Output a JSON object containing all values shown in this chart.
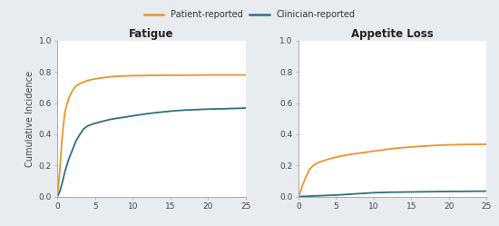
{
  "title_left": "Fatigue",
  "title_right": "Appetite Loss",
  "ylabel": "Cumulative Incidence",
  "xlim": [
    0,
    25
  ],
  "ylim": [
    0.0,
    1.0
  ],
  "yticks": [
    0.0,
    0.2,
    0.4,
    0.6,
    0.8,
    1.0
  ],
  "xticks": [
    0,
    5,
    10,
    15,
    20,
    25
  ],
  "color_patient": "#E8952A",
  "color_clinician": "#2E7080",
  "legend_labels": [
    "Patient-reported",
    "Clinician-reported"
  ],
  "outer_bg": "#E8ECF0",
  "plot_bg": "#FFFFFF",
  "fatigue_patient_x": [
    0,
    0.2,
    0.4,
    0.6,
    0.8,
    1.0,
    1.2,
    1.5,
    1.8,
    2.0,
    2.5,
    3.0,
    3.5,
    4.0,
    5.0,
    6.0,
    7.0,
    8.0,
    9.0,
    10.0,
    11.0,
    12.0,
    13.0,
    14.0,
    15.0,
    16.0,
    17.0,
    18.0,
    19.0,
    20.0,
    21.0,
    22.0,
    23.0,
    24.0,
    25.0
  ],
  "fatigue_patient_y": [
    0.0,
    0.1,
    0.22,
    0.36,
    0.46,
    0.54,
    0.58,
    0.63,
    0.66,
    0.68,
    0.71,
    0.725,
    0.735,
    0.745,
    0.755,
    0.762,
    0.768,
    0.772,
    0.774,
    0.7755,
    0.776,
    0.777,
    0.7775,
    0.778,
    0.778,
    0.7785,
    0.779,
    0.779,
    0.7795,
    0.78,
    0.78,
    0.78,
    0.78,
    0.78,
    0.78
  ],
  "fatigue_clinician_x": [
    0,
    0.3,
    0.6,
    1.0,
    1.5,
    2.0,
    2.5,
    3.0,
    3.5,
    4.0,
    4.5,
    5.0,
    6.0,
    7.0,
    8.0,
    9.0,
    10.0,
    11.0,
    12.0,
    13.0,
    14.0,
    15.0,
    16.0,
    17.0,
    18.0,
    19.0,
    20.0,
    21.0,
    22.0,
    23.0,
    24.0,
    25.0
  ],
  "fatigue_clinician_y": [
    0.0,
    0.03,
    0.08,
    0.16,
    0.24,
    0.3,
    0.36,
    0.4,
    0.435,
    0.453,
    0.462,
    0.47,
    0.483,
    0.495,
    0.503,
    0.51,
    0.518,
    0.525,
    0.532,
    0.538,
    0.543,
    0.548,
    0.552,
    0.555,
    0.557,
    0.559,
    0.561,
    0.562,
    0.563,
    0.565,
    0.566,
    0.568
  ],
  "appetite_patient_x": [
    0,
    0.2,
    0.4,
    0.6,
    0.8,
    1.0,
    1.2,
    1.5,
    2.0,
    2.5,
    3.0,
    3.5,
    4.0,
    5.0,
    6.0,
    7.0,
    8.0,
    9.0,
    10.0,
    11.0,
    12.0,
    13.0,
    14.0,
    15.0,
    16.0,
    17.0,
    18.0,
    19.0,
    20.0,
    21.0,
    22.0,
    23.0,
    24.0,
    25.0
  ],
  "appetite_patient_y": [
    0.0,
    0.02,
    0.05,
    0.08,
    0.1,
    0.125,
    0.145,
    0.175,
    0.2,
    0.215,
    0.225,
    0.232,
    0.24,
    0.253,
    0.263,
    0.272,
    0.278,
    0.285,
    0.292,
    0.298,
    0.305,
    0.31,
    0.315,
    0.318,
    0.322,
    0.325,
    0.328,
    0.33,
    0.332,
    0.333,
    0.334,
    0.335,
    0.335,
    0.336
  ],
  "appetite_clinician_x": [
    0,
    0.5,
    1.0,
    1.5,
    2.0,
    3.0,
    4.0,
    5.0,
    6.0,
    7.0,
    8.0,
    9.0,
    10.0,
    12.0,
    15.0,
    18.0,
    20.0,
    22.0,
    25.0
  ],
  "appetite_clinician_y": [
    0.0,
    0.001,
    0.002,
    0.003,
    0.004,
    0.006,
    0.008,
    0.01,
    0.013,
    0.016,
    0.019,
    0.022,
    0.025,
    0.028,
    0.03,
    0.032,
    0.033,
    0.034,
    0.035
  ]
}
